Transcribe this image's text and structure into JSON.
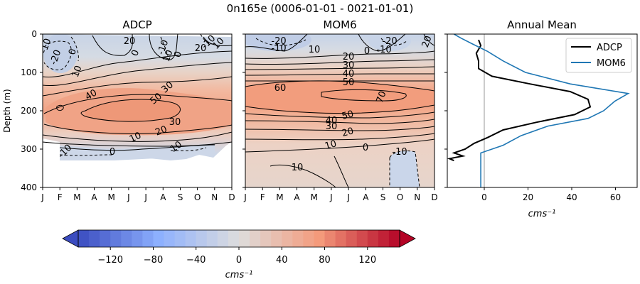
{
  "suptitle": "0n165e (0006-01-01 - 0021-01-01)",
  "chart_data": [
    {
      "type": "heatmap",
      "title": "ADCP",
      "ylabel": "Depth (m)",
      "ylim": [
        0,
        400
      ],
      "months": [
        "J",
        "F",
        "M",
        "A",
        "M",
        "J",
        "J",
        "A",
        "S",
        "O",
        "N",
        "D"
      ],
      "depth_ticks": [
        "0",
        "100",
        "200",
        "300",
        "400"
      ],
      "contour_labels": [
        "-10",
        "-20",
        "0",
        "10",
        "20",
        "0",
        "-10",
        "10",
        "0",
        "20",
        "-10",
        "10",
        "40",
        "30",
        "50",
        "30",
        "20",
        "10",
        "10",
        "0",
        "-10"
      ],
      "depth_range_m": [
        15,
        330
      ],
      "max_value_approx": 55
    },
    {
      "type": "heatmap",
      "title": "MOM6",
      "ylim": [
        0,
        400
      ],
      "months": [
        "J",
        "F",
        "M",
        "A",
        "M",
        "J",
        "J",
        "A",
        "S",
        "O",
        "N",
        "D"
      ],
      "contour_labels": [
        "-20",
        "-10",
        "10",
        "-10",
        "0",
        "-20",
        "20",
        "20",
        "30",
        "40",
        "50",
        "60",
        "70",
        "40",
        "30",
        "50",
        "20",
        "10",
        "0",
        "-10",
        "10"
      ],
      "max_value_approx": 72
    },
    {
      "type": "line",
      "title": "Annual Mean",
      "xlabel": "cms⁻¹",
      "xlim": [
        -15,
        70
      ],
      "ylim": [
        0,
        400
      ],
      "xticks": [
        "0",
        "20",
        "40",
        "60"
      ],
      "series": [
        {
          "name": "ADCP",
          "color": "#000000",
          "depth": [
            15,
            30,
            50,
            70,
            90,
            110,
            130,
            150,
            170,
            190,
            210,
            230,
            250,
            270,
            285,
            300,
            310,
            318,
            325,
            330
          ],
          "values": [
            -1,
            0,
            -2,
            -1,
            -1,
            5,
            22,
            40,
            48,
            49,
            42,
            25,
            10,
            3,
            -3,
            -7,
            -12,
            -8,
            -14,
            -12
          ]
        },
        {
          "name": "MOM6",
          "color": "#1f77b4",
          "depth": [
            0,
            10,
            25,
            45,
            70,
            100,
            130,
            155,
            175,
            200,
            220,
            240,
            265,
            290,
            310,
            330,
            400
          ],
          "values": [
            -12,
            -9,
            -4,
            3,
            10,
            20,
            40,
            66,
            60,
            55,
            48,
            30,
            18,
            10,
            0,
            0,
            0
          ]
        }
      ]
    },
    {
      "type": "colorbar",
      "vmin": -150,
      "vmax": 150,
      "step": 10,
      "ticks": [
        "−120",
        "−80",
        "−40",
        "0",
        "40",
        "80",
        "120"
      ],
      "label": "cms⁻¹"
    }
  ]
}
